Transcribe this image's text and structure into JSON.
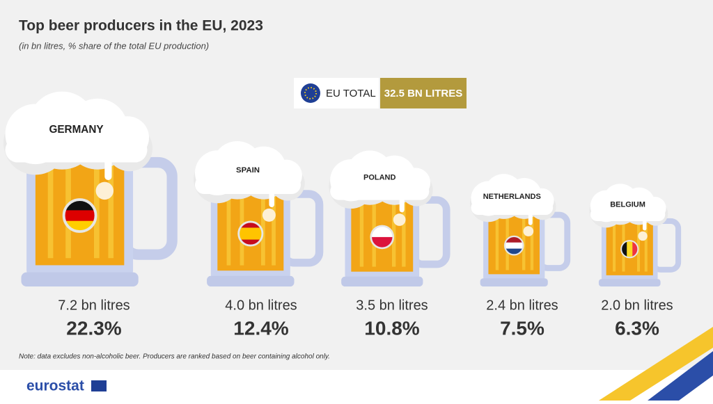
{
  "chart_data": {
    "type": "pictogram",
    "title": "Top beer producers in the EU, 2023",
    "subtitle": "(in bn litres, % share of the total EU production)",
    "total_name": "EU TOTAL",
    "total": 32.5,
    "total_label": "32.5 BN LITRES",
    "categories": [
      "GERMANY",
      "SPAIN",
      "POLAND",
      "NETHERLANDS",
      "BELGIUM"
    ],
    "values": [
      7.2,
      4.0,
      3.5,
      2.4,
      2.0
    ],
    "value_labels": [
      "7.2 bn litres",
      "4.0 bn litres",
      "3.5 bn litres",
      "2.4 bn litres",
      "2.0 bn litres"
    ],
    "shares": [
      22.3,
      12.4,
      10.8,
      7.5,
      6.3
    ],
    "share_labels": [
      "22.3%",
      "12.4%",
      "10.8%",
      "7.5%",
      "6.3%"
    ],
    "note": "Note: data excludes non-alcoholic beer. Producers are ranked based on beer containing alcohol only.",
    "source": "eurostat"
  }
}
